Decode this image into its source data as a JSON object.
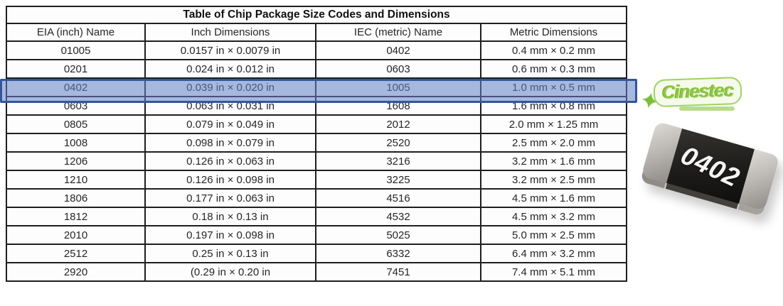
{
  "table": {
    "title": "Table of Chip Package Size Codes and Dimensions",
    "columns": [
      "EIA (inch) Name",
      "Inch Dimensions",
      "IEC (metric) Name",
      "Metric Dimensions"
    ],
    "rows": [
      [
        "01005",
        "0.0157 in × 0.0079 in",
        "0402",
        "0.4 mm × 0.2 mm"
      ],
      [
        "0201",
        "0.024 in × 0.012 in",
        "0603",
        "0.6 mm × 0.3 mm"
      ],
      [
        "0402",
        "0.039 in × 0.020 in",
        "1005",
        "1.0 mm × 0.5 mm"
      ],
      [
        "0603",
        "0.063 in × 0.031 in",
        "1608",
        "1.6 mm × 0.8 mm"
      ],
      [
        "0805",
        "0.079 in × 0.049 in",
        "2012",
        "2.0 mm × 1.25 mm"
      ],
      [
        "1008",
        "0.098 in × 0.079 in",
        "2520",
        "2.5 mm × 2.0 mm"
      ],
      [
        "1206",
        "0.126 in × 0.063 in",
        "3216",
        "3.2 mm × 1.6 mm"
      ],
      [
        "1210",
        "0.126 in × 0.098 in",
        "3225",
        "3.2 mm × 2.5 mm"
      ],
      [
        "1806",
        "0.177 in × 0.063 in",
        "4516",
        "4.5 mm × 1.6 mm"
      ],
      [
        "1812",
        "0.18 in × 0.13 in",
        "4532",
        "4.5 mm × 3.2 mm"
      ],
      [
        "2010",
        "0.197 in × 0.098 in",
        "5025",
        "5.0 mm × 2.5 mm"
      ],
      [
        "2512",
        "0.25 in × 0.13 in",
        "6332",
        "6.4 mm × 3.2 mm"
      ],
      [
        "2920",
        "(0.29 in × 0.20 in",
        "7451",
        "7.4 mm × 5.1 mm"
      ]
    ],
    "highlighted_row_index": 2
  },
  "highlight": {
    "fill_color": "#8FA7D9",
    "border_color": "#33569B"
  },
  "logo": {
    "text": "Cinestec",
    "accent_color": "#8DC63F"
  },
  "chip": {
    "label": "0402",
    "body_color": "#1D1C1A",
    "cap_color": "#BDBAB5"
  }
}
